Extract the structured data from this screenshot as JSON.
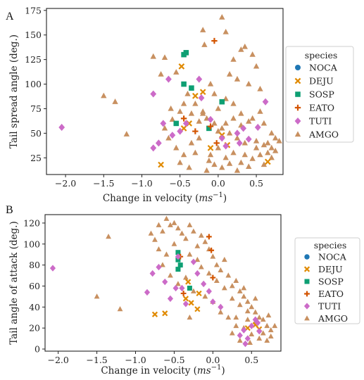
{
  "colors": {
    "NOCA": "#1f77b4",
    "DEJU": "#e08a00",
    "SOSP": "#0e9f73",
    "EATO": "#d35400",
    "TUTI": "#cc6bc8",
    "AMGO": "#c89060"
  },
  "legend_title": "species",
  "chart_data": [
    {
      "panel": "A",
      "type": "scatter",
      "xlabel_main": "Change in velocity (",
      "xlabel_unit": "ms",
      "xlabel_exp": "−1",
      "xlabel_close": ")",
      "ylabel": "Tail spread angle (deg.)",
      "xlim": [
        -2.25,
        0.85
      ],
      "ylim": [
        8,
        177
      ],
      "xticks": [
        -2.0,
        -1.5,
        -1.0,
        -0.5,
        0.0,
        0.5
      ],
      "xtick_labels": [
        "−2.0",
        "−1.5",
        "−1.0",
        "−0.5",
        "0.0",
        "0.5"
      ],
      "yticks": [
        25,
        50,
        75,
        100,
        125,
        150,
        175
      ],
      "ytick_labels": [
        "25",
        "50",
        "75",
        "100",
        "125",
        "150",
        "175"
      ],
      "legend_position": "right-outside",
      "series": [
        {
          "name": "NOCA",
          "marker": "circle",
          "points": []
        },
        {
          "name": "DEJU",
          "marker": "x",
          "points": [
            [
              -0.75,
              18
            ],
            [
              -0.48,
              118
            ],
            [
              -0.45,
              55
            ],
            [
              -0.3,
              88
            ],
            [
              -0.2,
              92
            ],
            [
              -0.38,
              60
            ],
            [
              0.05,
              48
            ],
            [
              0.12,
              38
            ],
            [
              0.65,
              21
            ],
            [
              -0.1,
              35
            ]
          ]
        },
        {
          "name": "SOSP",
          "marker": "square",
          "points": [
            [
              -0.45,
              130
            ],
            [
              -0.42,
              132
            ],
            [
              -0.45,
              100
            ],
            [
              -0.35,
              96
            ],
            [
              -0.55,
              60
            ],
            [
              0.05,
              82
            ],
            [
              -0.12,
              55
            ]
          ]
        },
        {
          "name": "EATO",
          "marker": "plus",
          "points": [
            [
              -0.05,
              144
            ],
            [
              -0.45,
              65
            ],
            [
              -0.3,
              52
            ],
            [
              -0.1,
              57
            ],
            [
              -0.02,
              40
            ]
          ]
        },
        {
          "name": "TUTI",
          "marker": "diamond",
          "points": [
            [
              -2.05,
              56
            ],
            [
              -0.85,
              90
            ],
            [
              -0.65,
              105
            ],
            [
              -0.25,
              105
            ],
            [
              -0.78,
              40
            ],
            [
              -0.85,
              35
            ],
            [
              -0.72,
              60
            ],
            [
              -0.5,
              52
            ],
            [
              -0.42,
              60
            ],
            [
              -0.6,
              48
            ],
            [
              -0.22,
              86
            ],
            [
              -0.1,
              64
            ],
            [
              0.05,
              45
            ],
            [
              0.1,
              37
            ],
            [
              0.25,
              50
            ],
            [
              0.33,
              55
            ],
            [
              0.4,
              44
            ],
            [
              0.52,
              56
            ],
            [
              0.62,
              82
            ],
            [
              0.28,
              40
            ]
          ]
        },
        {
          "name": "AMGO",
          "marker": "triangle",
          "points": [
            [
              -1.5,
              88
            ],
            [
              -1.35,
              82
            ],
            [
              -1.2,
              49
            ],
            [
              -0.85,
              128
            ],
            [
              -0.75,
              110
            ],
            [
              -0.7,
              127
            ],
            [
              -0.55,
              112
            ],
            [
              -0.62,
              75
            ],
            [
              -0.6,
              64
            ],
            [
              -0.55,
              35
            ],
            [
              -0.5,
              20
            ],
            [
              -0.45,
              28
            ],
            [
              -0.38,
              15
            ],
            [
              -0.35,
              40
            ],
            [
              -0.3,
              30
            ],
            [
              -0.25,
              45
            ],
            [
              -0.2,
              70
            ],
            [
              -0.15,
              12
            ],
            [
              -0.12,
              22
            ],
            [
              -0.1,
              28
            ],
            [
              -0.05,
              18
            ],
            [
              0.0,
              35
            ],
            [
              0.05,
              15
            ],
            [
              0.1,
              25
            ],
            [
              0.15,
              19
            ],
            [
              0.2,
              30
            ],
            [
              0.25,
              12
            ],
            [
              0.3,
              20
            ],
            [
              0.35,
              28
            ],
            [
              0.4,
              16
            ],
            [
              0.45,
              24
            ],
            [
              0.5,
              35
            ],
            [
              0.55,
              28
            ],
            [
              0.6,
              18
            ],
            [
              0.65,
              30
            ],
            [
              0.7,
              25
            ],
            [
              0.75,
              32
            ],
            [
              -0.2,
              155
            ],
            [
              -0.18,
              140
            ],
            [
              0.05,
              168
            ],
            [
              0.1,
              153
            ],
            [
              0.2,
              125
            ],
            [
              0.3,
              135
            ],
            [
              0.35,
              138
            ],
            [
              0.45,
              130
            ],
            [
              0.5,
              118
            ],
            [
              0.15,
              110
            ],
            [
              0.25,
              105
            ],
            [
              0.4,
              100
            ],
            [
              0.55,
              95
            ],
            [
              -0.1,
              100
            ],
            [
              -0.05,
              90
            ],
            [
              0.0,
              75
            ],
            [
              0.1,
              85
            ],
            [
              0.2,
              80
            ],
            [
              0.3,
              70
            ],
            [
              0.45,
              65
            ],
            [
              0.6,
              60
            ],
            [
              0.7,
              50
            ],
            [
              0.75,
              45
            ],
            [
              -0.4,
              90
            ],
            [
              -0.3,
              80
            ],
            [
              -0.2,
              72
            ],
            [
              -0.15,
              65
            ],
            [
              -0.05,
              60
            ],
            [
              0.05,
              55
            ],
            [
              0.15,
              50
            ],
            [
              0.25,
              45
            ],
            [
              0.35,
              40
            ],
            [
              0.5,
              42
            ],
            [
              0.65,
              40
            ],
            [
              -0.5,
              72
            ],
            [
              -0.45,
              80
            ],
            [
              -0.35,
              70
            ],
            [
              -0.25,
              62
            ],
            [
              0.0,
              52
            ],
            [
              0.1,
              60
            ],
            [
              0.2,
              65
            ],
            [
              0.3,
              58
            ],
            [
              0.4,
              62
            ],
            [
              0.55,
              72
            ],
            [
              -0.65,
              45
            ],
            [
              -0.7,
              55
            ],
            [
              0.6,
              38
            ],
            [
              0.7,
              35
            ],
            [
              0.8,
              42
            ]
          ]
        }
      ]
    },
    {
      "panel": "B",
      "type": "scatter",
      "xlabel_main": "Change in velocity (",
      "xlabel_unit": "ms",
      "xlabel_exp": "−1",
      "xlabel_close": ")",
      "ylabel": "Tail angle of attack (deg.)",
      "xlim": [
        -2.17,
        0.88
      ],
      "ylim": [
        -2,
        128
      ],
      "xticks": [
        -2.0,
        -1.5,
        -1.0,
        -0.5,
        0.0,
        0.5
      ],
      "xtick_labels": [
        "−2.0",
        "−1.5",
        "−1.0",
        "−0.5",
        "0.0",
        "0.5"
      ],
      "yticks": [
        0,
        20,
        40,
        60,
        80,
        100,
        120
      ],
      "ytick_labels": [
        "0",
        "20",
        "40",
        "60",
        "80",
        "100",
        "120"
      ],
      "legend_position": "right-outside",
      "series": [
        {
          "name": "NOCA",
          "marker": "circle",
          "points": []
        },
        {
          "name": "DEJU",
          "marker": "x",
          "points": [
            [
              -0.75,
              33
            ],
            [
              -0.62,
              34
            ],
            [
              -0.35,
              48
            ],
            [
              -0.32,
              64
            ],
            [
              -0.28,
              44
            ],
            [
              -0.2,
              38
            ],
            [
              -0.18,
              53
            ],
            [
              0.45,
              20
            ],
            [
              0.6,
              19
            ],
            [
              0.55,
              23
            ]
          ]
        },
        {
          "name": "SOSP",
          "marker": "square",
          "points": [
            [
              -0.45,
              92
            ],
            [
              -0.45,
              85
            ],
            [
              -0.45,
              76
            ],
            [
              -0.42,
              80
            ],
            [
              -0.3,
              58
            ]
          ]
        },
        {
          "name": "EATO",
          "marker": "plus",
          "points": [
            [
              -0.42,
              88
            ],
            [
              -0.38,
              53
            ],
            [
              -0.05,
              107
            ],
            [
              -0.02,
              94
            ],
            [
              0.0,
              68
            ]
          ]
        },
        {
          "name": "TUTI",
          "marker": "diamond",
          "points": [
            [
              -2.07,
              77
            ],
            [
              -0.85,
              54
            ],
            [
              -0.78,
              72
            ],
            [
              -0.7,
              78
            ],
            [
              -0.62,
              64
            ],
            [
              -0.55,
              48
            ],
            [
              -0.48,
              58
            ],
            [
              -0.45,
              88
            ],
            [
              -0.4,
              58
            ],
            [
              -0.35,
              43
            ],
            [
              -0.25,
              83
            ],
            [
              -0.2,
              72
            ],
            [
              -0.12,
              62
            ],
            [
              -0.05,
              55
            ],
            [
              0.0,
              45
            ],
            [
              0.1,
              40
            ],
            [
              0.35,
              13
            ],
            [
              0.4,
              18
            ],
            [
              0.45,
              10
            ],
            [
              0.5,
              22
            ],
            [
              0.58,
              25
            ],
            [
              0.6,
              17
            ],
            [
              0.55,
              28
            ],
            [
              0.42,
              5
            ]
          ]
        },
        {
          "name": "AMGO",
          "marker": "triangle",
          "points": [
            [
              -1.35,
              107
            ],
            [
              -1.2,
              38
            ],
            [
              -1.5,
              50
            ],
            [
              -0.8,
              110
            ],
            [
              -0.75,
              104
            ],
            [
              -0.7,
              118
            ],
            [
              -0.65,
              112
            ],
            [
              -0.6,
              124
            ],
            [
              -0.55,
              118
            ],
            [
              -0.5,
              120
            ],
            [
              -0.45,
              115
            ],
            [
              -0.4,
              110
            ],
            [
              -0.35,
              105
            ],
            [
              -0.3,
              118
            ],
            [
              -0.25,
              112
            ],
            [
              -0.2,
              98
            ],
            [
              -0.15,
              108
            ],
            [
              -0.1,
              102
            ],
            [
              -0.05,
              95
            ],
            [
              0.0,
              88
            ],
            [
              0.05,
              80
            ],
            [
              0.1,
              75
            ],
            [
              0.15,
              85
            ],
            [
              0.2,
              70
            ],
            [
              0.25,
              60
            ],
            [
              0.3,
              65
            ],
            [
              0.35,
              55
            ],
            [
              0.4,
              50
            ],
            [
              0.45,
              45
            ],
            [
              0.5,
              40
            ],
            [
              0.55,
              35
            ],
            [
              0.6,
              30
            ],
            [
              0.65,
              28
            ],
            [
              0.7,
              22
            ],
            [
              0.75,
              18
            ],
            [
              -0.7,
              95
            ],
            [
              -0.6,
              90
            ],
            [
              -0.5,
              100
            ],
            [
              -0.3,
              90
            ],
            [
              -0.2,
              85
            ],
            [
              -0.15,
              78
            ],
            [
              -0.05,
              72
            ],
            [
              0.05,
              65
            ],
            [
              0.15,
              58
            ],
            [
              0.25,
              48
            ],
            [
              0.35,
              42
            ],
            [
              0.45,
              36
            ],
            [
              0.55,
              26
            ],
            [
              0.65,
              15
            ],
            [
              0.7,
              8
            ],
            [
              0.75,
              12
            ],
            [
              0.6,
              10
            ],
            [
              0.5,
              14
            ],
            [
              0.4,
              20
            ],
            [
              0.3,
              22
            ],
            [
              0.2,
              30
            ],
            [
              0.1,
              35
            ],
            [
              0.0,
              45
            ],
            [
              -0.1,
              50
            ],
            [
              -0.25,
              55
            ],
            [
              -0.35,
              68
            ],
            [
              -0.45,
              62
            ],
            [
              -0.55,
              70
            ],
            [
              -0.65,
              80
            ],
            [
              0.3,
              30
            ],
            [
              0.45,
              28
            ],
            [
              0.35,
              8
            ],
            [
              0.8,
              22
            ],
            [
              0.72,
              32
            ],
            [
              0.55,
              48
            ],
            [
              0.4,
              58
            ],
            [
              -0.3,
              30
            ],
            [
              0.25,
              15
            ],
            [
              0.48,
              6
            ]
          ]
        }
      ]
    }
  ],
  "panels": {
    "A": {
      "letter": "A"
    },
    "B": {
      "letter": "B"
    }
  }
}
